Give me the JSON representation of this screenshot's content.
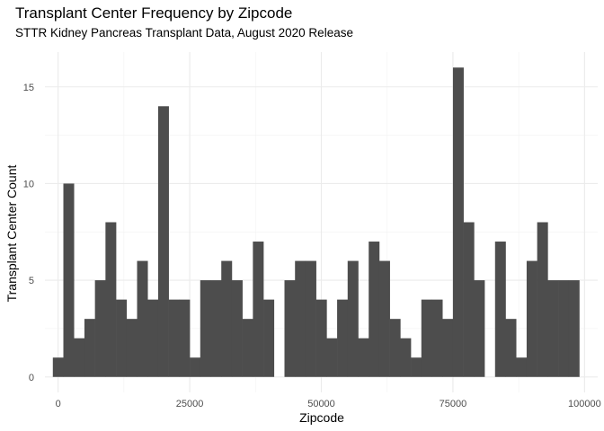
{
  "chart_data": {
    "type": "bar",
    "title": "Transplant Center Frequency by Zipcode",
    "subtitle": "STTR Kidney Pancreas Transplant Data, August 2020 Release",
    "xlabel": "Zipcode",
    "ylabel": "Transplant Center Count",
    "xlim": [
      -2500,
      102500
    ],
    "ylim": [
      -0.8,
      16.8
    ],
    "x_ticks": [
      0,
      25000,
      50000,
      75000,
      100000
    ],
    "x_tick_labels": [
      "0",
      "25000",
      "50000",
      "75000",
      "100000"
    ],
    "y_ticks": [
      0,
      5,
      10,
      15
    ],
    "y_tick_labels": [
      "0",
      "5",
      "10",
      "15"
    ],
    "bin_width": 2000,
    "bin_centers": [
      0,
      2000,
      4000,
      6000,
      8000,
      10000,
      12000,
      14000,
      16000,
      18000,
      20000,
      22000,
      24000,
      26000,
      28000,
      30000,
      32000,
      34000,
      36000,
      38000,
      40000,
      42000,
      44000,
      46000,
      48000,
      50000,
      52000,
      54000,
      56000,
      58000,
      60000,
      62000,
      64000,
      66000,
      68000,
      70000,
      72000,
      74000,
      76000,
      78000,
      80000,
      82000,
      84000,
      86000,
      88000,
      90000,
      92000,
      94000,
      96000,
      98000
    ],
    "values": [
      1,
      10,
      2,
      3,
      5,
      8,
      4,
      3,
      6,
      4,
      14,
      4,
      4,
      1,
      5,
      5,
      6,
      5,
      3,
      7,
      4,
      0,
      5,
      6,
      6,
      4,
      2,
      4,
      6,
      2,
      7,
      6,
      3,
      2,
      1,
      4,
      4,
      3,
      16,
      8,
      5,
      0,
      7,
      3,
      1,
      6,
      8,
      5,
      5,
      5
    ],
    "bar_color": "#4d4d4d",
    "grid": true,
    "legend": "none"
  }
}
